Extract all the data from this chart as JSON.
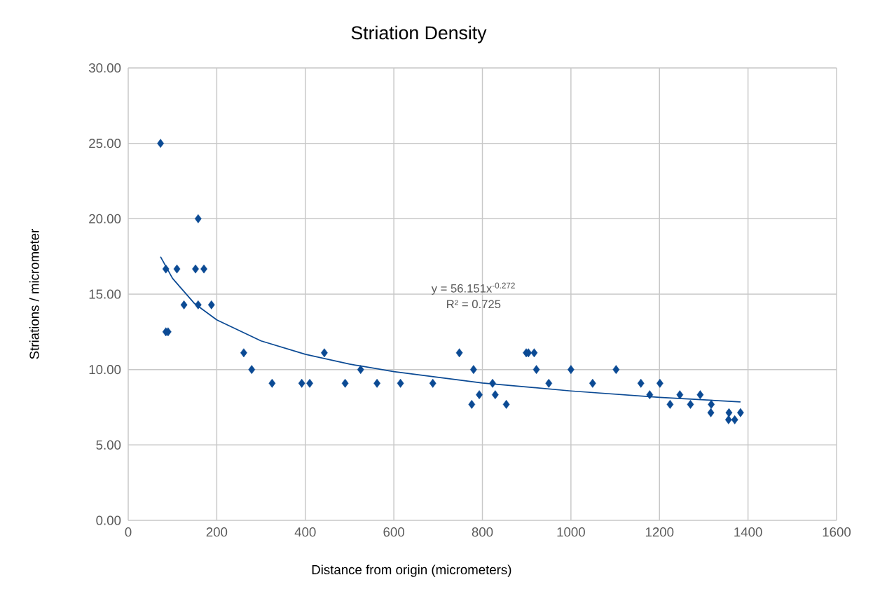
{
  "chart_data": {
    "type": "scatter",
    "title": "Striation Density",
    "xlabel": "Distance from origin (micrometers)",
    "ylabel": "Striations / micrometer",
    "annotations": [
      "y = 56.151x$^{-0.272}$",
      "R² = 0.725"
    ],
    "xlim": [
      0,
      1600
    ],
    "xticks": [
      0,
      200,
      400,
      600,
      800,
      1000,
      1200,
      1400,
      1600
    ],
    "ylim": [
      0,
      30
    ],
    "yticks": [
      {
        "value": 0,
        "label": "0.00"
      },
      {
        "value": 5,
        "label": "5.00"
      },
      {
        "value": 10,
        "label": "10.00"
      },
      {
        "value": 15,
        "label": "15.00"
      },
      {
        "value": 20,
        "label": "20.00"
      },
      {
        "value": 25,
        "label": "25.00"
      },
      {
        "value": 30,
        "label": "30.00"
      }
    ],
    "grid": true,
    "marker": "diamond",
    "series": [
      {
        "type": "scatter",
        "color": "#0b4a94",
        "x": [
          73,
          158,
          85,
          110,
          152,
          171,
          126,
          158,
          188,
          85,
          90,
          261,
          279,
          325,
          392,
          410,
          443,
          490,
          525,
          562,
          615,
          688,
          748,
          780,
          776,
          793,
          823,
          829,
          854,
          899,
          904,
          917,
          922,
          950,
          1000,
          1049,
          1102,
          1158,
          1201,
          1178,
          1224,
          1246,
          1270,
          1292,
          1317,
          1316,
          1357,
          1356,
          1370,
          1383
        ],
        "values": [
          25,
          20,
          16.67,
          16.67,
          16.67,
          16.67,
          14.29,
          14.29,
          14.29,
          12.5,
          12.5,
          11.11,
          10,
          9.09,
          9.09,
          9.09,
          11.11,
          9.09,
          10,
          9.09,
          9.09,
          9.09,
          11.11,
          10,
          7.69,
          8.33,
          9.09,
          8.33,
          7.69,
          11.11,
          11.11,
          11.11,
          10,
          9.09,
          10,
          9.09,
          10,
          9.09,
          9.09,
          8.33,
          7.69,
          8.33,
          7.69,
          8.33,
          7.69,
          7.14,
          7.14,
          6.67,
          6.67,
          7.14
        ]
      },
      {
        "type": "line",
        "color": "#0b4a94",
        "marker": "none",
        "x": [
          73,
          100,
          150,
          200,
          300,
          400,
          500,
          600,
          800,
          1000,
          1200,
          1383
        ],
        "values": [
          17.48,
          16.05,
          14.37,
          13.29,
          11.9,
          11.01,
          10.36,
          9.86,
          9.11,
          8.58,
          8.16,
          7.85
        ]
      }
    ]
  }
}
